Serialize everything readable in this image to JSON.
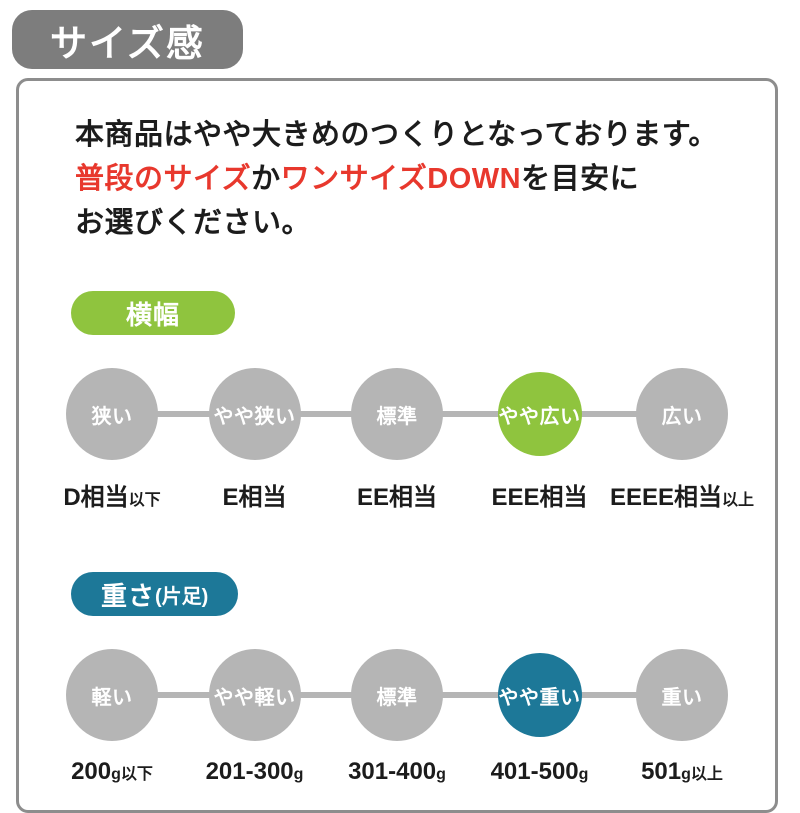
{
  "header": {
    "title": "サイズ感"
  },
  "notice": {
    "line1": "本商品はやや大きめのつくりとなっております。",
    "line2": {
      "seg1": "普段のサイズ",
      "seg2": "か",
      "seg3": "ワンサイズDOWN",
      "seg4": "を目安に"
    },
    "line3": "お選びください。"
  },
  "colors": {
    "header_badge_gray": "#7d7d7d",
    "panel_border_gray": "#8d8d8d",
    "node_gray": "#b5b5b5",
    "width_accent_green": "#8fc43e",
    "weight_accent_blue": "#1d7898",
    "notice_red": "#e8382d",
    "text_black": "#1c1c1c"
  },
  "width_scale": {
    "badge_label": "横幅",
    "selected": "やや広い",
    "nodes": [
      {
        "label": "狭い",
        "value_main": "D相当",
        "value_suffix": "以下",
        "highlighted": false
      },
      {
        "label": "やや狭い",
        "value_main": "E相当",
        "value_suffix": "",
        "highlighted": false
      },
      {
        "label": "標準",
        "value_main": "EE相当",
        "value_suffix": "",
        "highlighted": false
      },
      {
        "label": "やや広い",
        "value_main": "EEE相当",
        "value_suffix": "",
        "highlighted": true
      },
      {
        "label": "広い",
        "value_main": "EEEE相当",
        "value_suffix": "以上",
        "highlighted": false
      }
    ]
  },
  "weight_scale": {
    "badge_label": "重さ",
    "badge_suffix": "(片足)",
    "selected": "やや重い",
    "nodes": [
      {
        "label": "軽い",
        "value_main": "200",
        "value_suffix": "g以下",
        "highlighted": false
      },
      {
        "label": "やや軽い",
        "value_main": "201-300",
        "value_suffix": "g",
        "highlighted": false
      },
      {
        "label": "標準",
        "value_main": "301-400",
        "value_suffix": "g",
        "highlighted": false
      },
      {
        "label": "やや重い",
        "value_main": "401-500",
        "value_suffix": "g",
        "highlighted": true
      },
      {
        "label": "重い",
        "value_main": "501",
        "value_suffix": "g以上",
        "highlighted": false
      }
    ]
  }
}
